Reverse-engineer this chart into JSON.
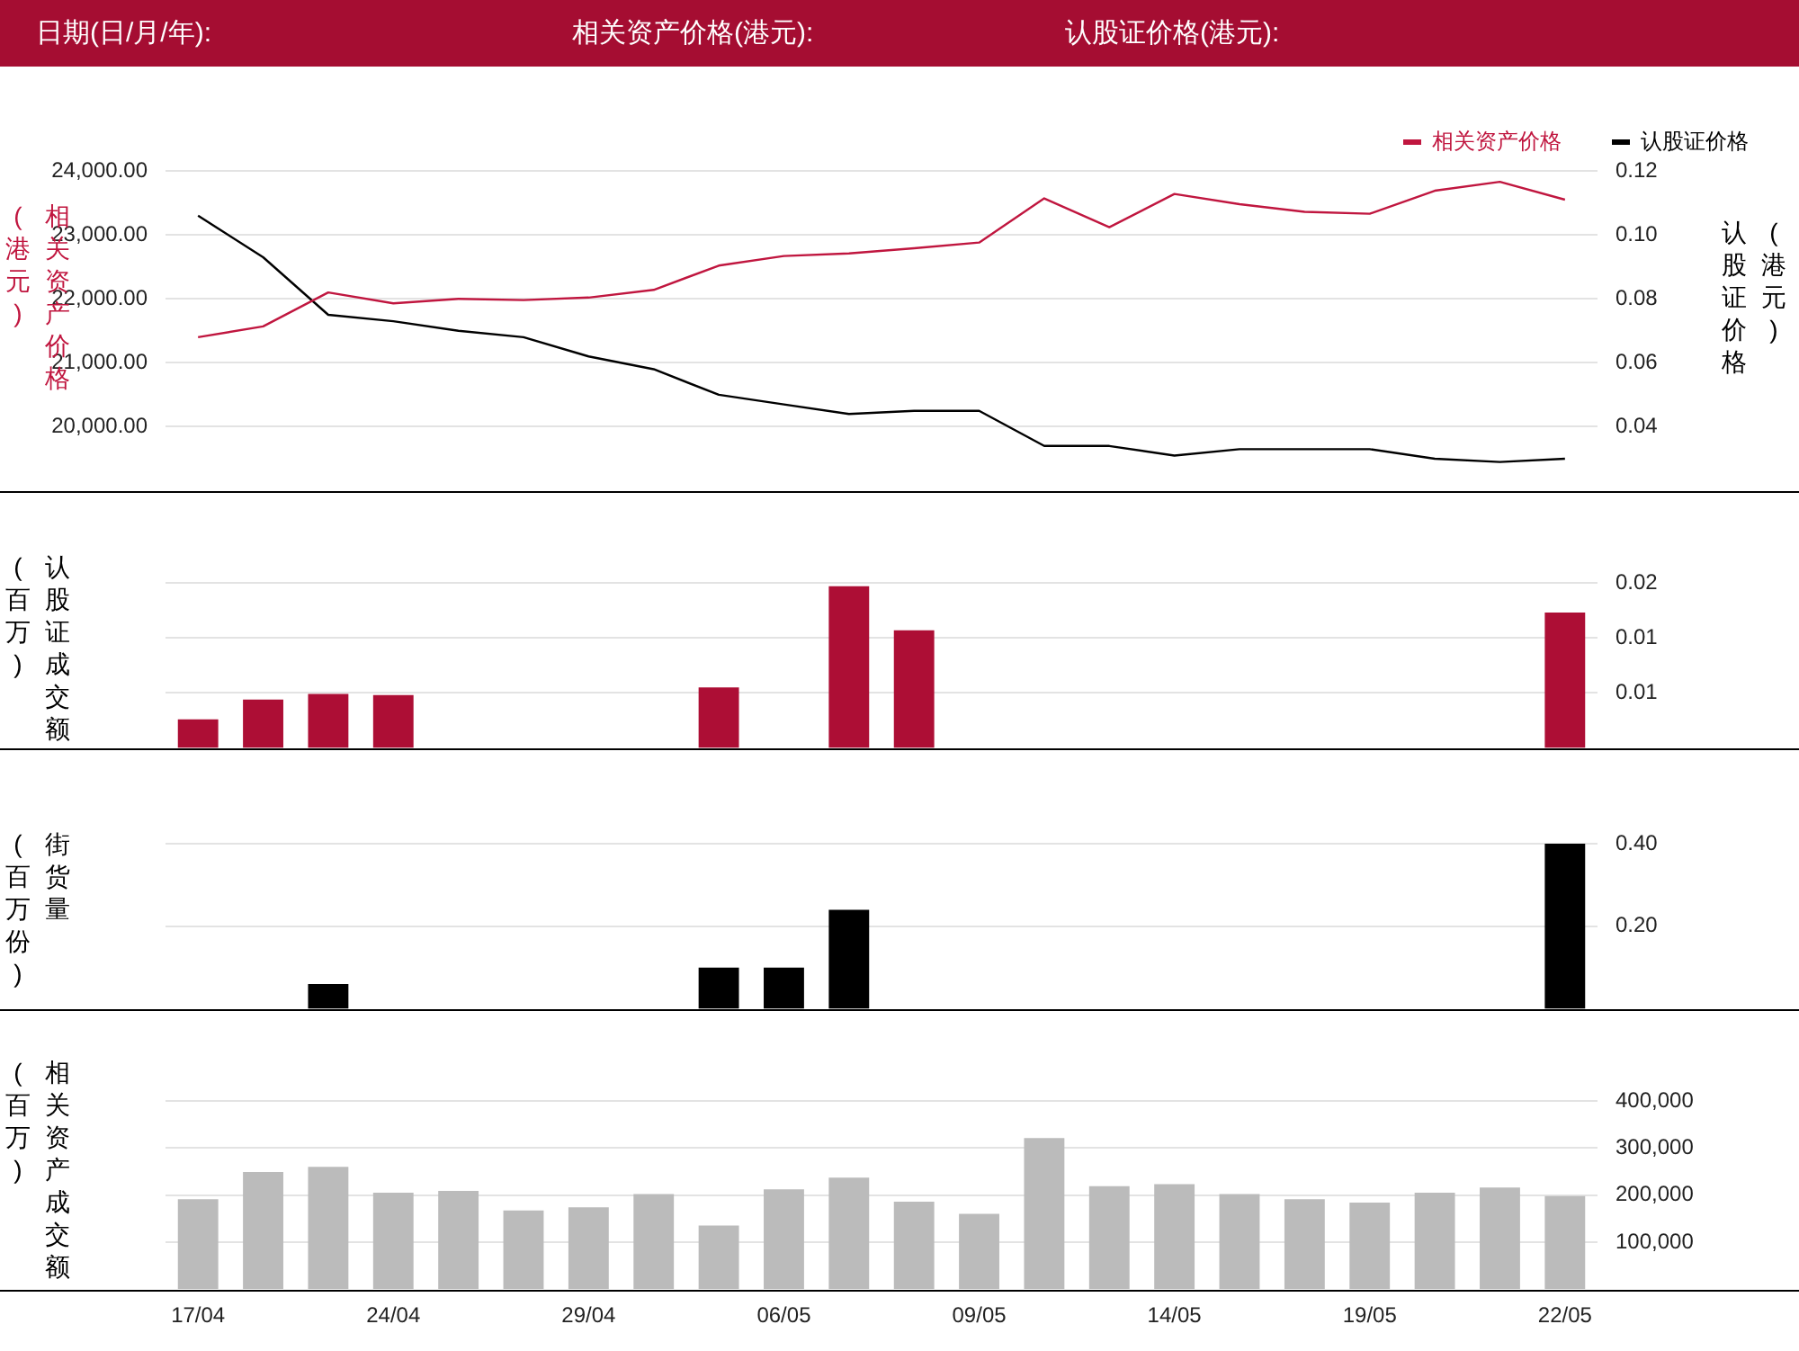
{
  "chart_data": [
    {
      "type": "line",
      "annotations": [
        "日期(日/月/年):",
        "相关资产价格(港元):",
        "认股证价格(港元):"
      ],
      "ylabel": "相关资产价格(港元)",
      "y2label": "认股证价格(港元)",
      "categories": [
        null,
        null,
        null,
        null,
        null,
        null,
        null,
        null,
        null,
        null,
        null,
        null,
        null,
        null,
        null,
        null,
        null,
        null,
        null,
        null,
        null,
        null
      ],
      "series": [
        {
          "name": "相关资产价格",
          "color": "#c0163f",
          "axis": "y",
          "values": [
            21400,
            21570,
            22100,
            21930,
            22000,
            21980,
            22020,
            22140,
            22520,
            22670,
            22710,
            22790,
            22880,
            23570,
            23120,
            23640,
            23480,
            23360,
            23330,
            23690,
            23830,
            23550
          ]
        },
        {
          "name": "认股证价格",
          "color": "#000000",
          "axis": "y2",
          "values": [
            0.106,
            0.093,
            0.075,
            0.073,
            0.07,
            0.068,
            0.062,
            0.058,
            0.05,
            0.047,
            0.044,
            0.045,
            0.045,
            0.034,
            0.034,
            0.031,
            0.033,
            0.033,
            0.033,
            0.03,
            0.029,
            0.03
          ]
        }
      ],
      "ylim": [
        19000,
        24000
      ],
      "yticks": [
        {
          "value": 20000,
          "label": "20,000.00"
        },
        {
          "value": 21000,
          "label": "21,000.00"
        },
        {
          "value": 22000,
          "label": "22,000.00"
        },
        {
          "value": 23000,
          "label": "23,000.00"
        },
        {
          "value": 24000,
          "label": "24,000.00"
        }
      ],
      "y2lim": [
        0.02,
        0.12
      ],
      "y2ticks": [
        {
          "value": 0.04,
          "label": "0.04"
        },
        {
          "value": 0.06,
          "label": "0.06"
        },
        {
          "value": 0.08,
          "label": "0.08"
        },
        {
          "value": 0.1,
          "label": "0.10"
        },
        {
          "value": 0.12,
          "label": "0.12"
        }
      ],
      "grid": "y",
      "legend": "top right",
      "marker": "none",
      "tick_labels": "y"
    },
    {
      "type": "bar",
      "ylabel": "认股证成交额(百万)",
      "categories": [
        null,
        null,
        null,
        null,
        null,
        null,
        null,
        null,
        null,
        null,
        null,
        null,
        null,
        null,
        null,
        null,
        null,
        null,
        null,
        null,
        null,
        null
      ],
      "series": [
        {
          "color": "#ad0e35",
          "values": [
            0.0026,
            0.0044,
            0.0049,
            0.0048,
            null,
            null,
            null,
            null,
            0.0055,
            null,
            0.0147,
            0.0107,
            null,
            null,
            null,
            null,
            null,
            null,
            null,
            null,
            null,
            0.0123
          ]
        }
      ],
      "ylim": [
        0,
        0.015
      ],
      "yticks": [
        {
          "value": 0.005,
          "label": "0.01"
        },
        {
          "value": 0.01,
          "label": "0.01"
        },
        {
          "value": 0.015,
          "label": "0.02"
        }
      ],
      "grid": "y",
      "tick_labels": "y"
    },
    {
      "type": "bar",
      "ylabel": "街货量(百万份)",
      "categories": [
        null,
        null,
        null,
        null,
        null,
        null,
        null,
        null,
        null,
        null,
        null,
        null,
        null,
        null,
        null,
        null,
        null,
        null,
        null,
        null,
        null,
        null
      ],
      "series": [
        {
          "color": "#000000",
          "values": [
            null,
            null,
            0.06,
            null,
            null,
            null,
            null,
            null,
            0.1,
            0.1,
            0.24,
            null,
            null,
            null,
            null,
            null,
            null,
            null,
            null,
            null,
            null,
            0.4
          ]
        }
      ],
      "ylim": [
        0,
        0.4
      ],
      "yticks": [
        {
          "value": 0.2,
          "label": "0.20"
        },
        {
          "value": 0.4,
          "label": "0.40"
        }
      ],
      "grid": "y",
      "tick_labels": "y"
    },
    {
      "type": "bar",
      "ylabel": "相关资产成交额(百万)",
      "categories": [
        "17/04",
        null,
        null,
        "24/04",
        null,
        null,
        "29/04",
        null,
        null,
        "06/05",
        null,
        null,
        "09/05",
        null,
        null,
        "14/05",
        null,
        null,
        "19/05",
        null,
        null,
        "22/05"
      ],
      "series": [
        {
          "color": "#bbbbbb",
          "values": [
            191000,
            249000,
            260000,
            205000,
            209000,
            167000,
            174000,
            202000,
            135000,
            212000,
            237000,
            186000,
            160000,
            321000,
            219000,
            223000,
            202000,
            191000,
            184000,
            205000,
            216000,
            198000
          ]
        }
      ],
      "ylim": [
        0,
        400000
      ],
      "yticks": [
        {
          "value": 100000,
          "label": "100,000"
        },
        {
          "value": 200000,
          "label": "200,000"
        },
        {
          "value": 300000,
          "label": "300,000"
        },
        {
          "value": 400000,
          "label": "400,000"
        }
      ],
      "grid": "y"
    }
  ]
}
